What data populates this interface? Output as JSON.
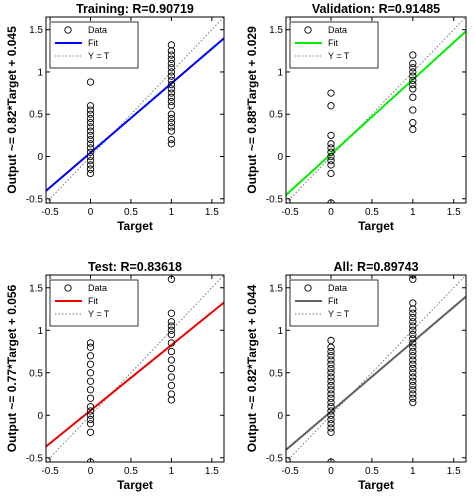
{
  "chart_data": [
    {
      "type": "scatter",
      "title": "Training: R=0.90719",
      "xlabel": "Target",
      "ylabel": "Output ~= 0.82*Target + 0.045",
      "xlim": [
        -0.55,
        1.65
      ],
      "ylim": [
        -0.55,
        1.65
      ],
      "xticks": [
        "-0.5",
        "0",
        "0.5",
        "1",
        "1.5"
      ],
      "yticks": [
        "-0.5",
        "0",
        "0.5",
        "1",
        "1.5"
      ],
      "fit": {
        "slope": 0.82,
        "intercept": 0.045,
        "color": "#0000ff"
      },
      "legend": {
        "position": "top-left",
        "entries": [
          "Data",
          "Fit",
          "Y = T"
        ]
      },
      "data": {
        "x0": [
          -0.2,
          -0.15,
          -0.1,
          -0.05,
          0,
          0.05,
          0.1,
          0.15,
          0.2,
          0.25,
          0.3,
          0.35,
          0.4,
          0.45,
          0.5,
          0.55,
          0.6,
          0.88
        ],
        "x1": [
          0.15,
          0.2,
          0.3,
          0.35,
          0.4,
          0.45,
          0.5,
          0.6,
          0.65,
          0.7,
          0.75,
          0.8,
          0.85,
          0.9,
          0.95,
          1.0,
          1.05,
          1.1,
          1.15,
          1.2,
          1.25,
          1.32
        ]
      }
    },
    {
      "type": "scatter",
      "title": "Validation: R=0.91485",
      "xlabel": "Target",
      "ylabel": "Output ~= 0.88*Target + 0.029",
      "xlim": [
        -0.55,
        1.65
      ],
      "ylim": [
        -0.55,
        1.65
      ],
      "xticks": [
        "-0.5",
        "0",
        "0.5",
        "1",
        "1.5"
      ],
      "yticks": [
        "-0.5",
        "0",
        "0.5",
        "1",
        "1.5"
      ],
      "fit": {
        "slope": 0.88,
        "intercept": 0.029,
        "color": "#00ee00"
      },
      "legend": {
        "position": "top-left",
        "entries": [
          "Data",
          "Fit",
          "Y = T"
        ]
      },
      "data": {
        "x0": [
          -0.55,
          -0.2,
          -0.1,
          -0.05,
          0,
          0.05,
          0.1,
          0.15,
          0.25,
          0.6,
          0.75
        ],
        "x1": [
          0.32,
          0.4,
          0.55,
          0.7,
          0.8,
          0.85,
          0.9,
          0.95,
          1.0,
          1.05,
          1.1,
          1.2
        ]
      }
    },
    {
      "type": "scatter",
      "title": "Test: R=0.83618",
      "xlabel": "Target",
      "ylabel": "Output ~= 0.77*Target + 0.056",
      "xlim": [
        -0.55,
        1.65
      ],
      "ylim": [
        -0.55,
        1.65
      ],
      "xticks": [
        "-0.5",
        "0",
        "0.5",
        "1",
        "1.5"
      ],
      "yticks": [
        "-0.5",
        "0",
        "0.5",
        "1",
        "1.5"
      ],
      "fit": {
        "slope": 0.77,
        "intercept": 0.056,
        "color": "#ee0000"
      },
      "legend": {
        "position": "top-left",
        "entries": [
          "Data",
          "Fit",
          "Y = T"
        ]
      },
      "data": {
        "x0": [
          -0.55,
          -0.2,
          -0.1,
          -0.05,
          0,
          0.05,
          0.1,
          0.2,
          0.3,
          0.4,
          0.5,
          0.6,
          0.7,
          0.8,
          0.85
        ],
        "x1": [
          0.18,
          0.25,
          0.35,
          0.45,
          0.55,
          0.65,
          0.75,
          0.85,
          0.95,
          1.0,
          1.05,
          1.1,
          1.2,
          1.6
        ]
      }
    },
    {
      "type": "scatter",
      "title": "All: R=0.89743",
      "xlabel": "Target",
      "ylabel": "Output ~= 0.82*Target + 0.044",
      "xlim": [
        -0.55,
        1.65
      ],
      "ylim": [
        -0.55,
        1.65
      ],
      "xticks": [
        "-0.5",
        "0",
        "0.5",
        "1",
        "1.5"
      ],
      "yticks": [
        "-0.5",
        "0",
        "0.5",
        "1",
        "1.5"
      ],
      "fit": {
        "slope": 0.82,
        "intercept": 0.044,
        "color": "#606060"
      },
      "legend": {
        "position": "top-left",
        "entries": [
          "Data",
          "Fit",
          "Y = T"
        ]
      },
      "data": {
        "x0": [
          -0.55,
          -0.2,
          -0.15,
          -0.1,
          -0.05,
          0,
          0.05,
          0.1,
          0.15,
          0.2,
          0.25,
          0.3,
          0.35,
          0.4,
          0.45,
          0.5,
          0.55,
          0.6,
          0.65,
          0.7,
          0.75,
          0.8,
          0.88
        ],
        "x1": [
          0.15,
          0.2,
          0.25,
          0.3,
          0.35,
          0.4,
          0.45,
          0.5,
          0.55,
          0.6,
          0.65,
          0.7,
          0.75,
          0.8,
          0.85,
          0.9,
          0.95,
          1.0,
          1.05,
          1.1,
          1.15,
          1.2,
          1.25,
          1.32,
          1.6,
          1.65
        ]
      }
    }
  ]
}
